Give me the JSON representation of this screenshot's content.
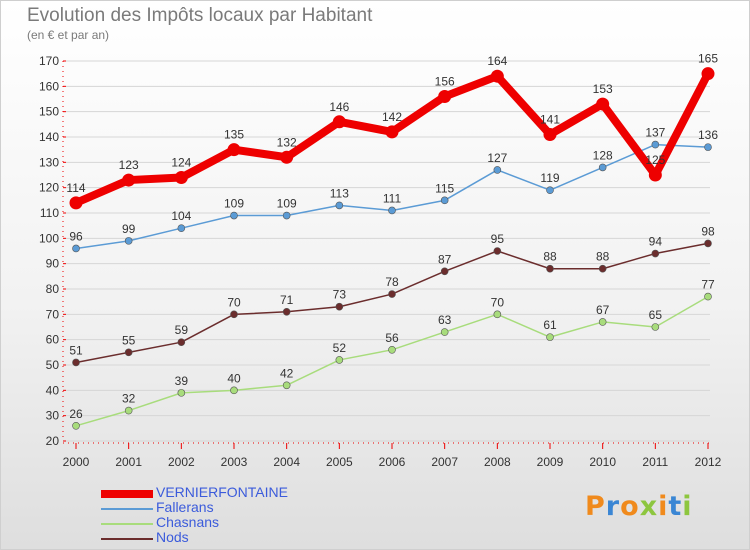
{
  "header": {
    "title": "Evolution des Impôts locaux par Habitant",
    "subtitle": "(en € et par an)"
  },
  "logo": {
    "text": "Proxiti",
    "letter_colors": [
      "#f08a1c",
      "#3a86d4",
      "#f08a1c",
      "#8dc63f",
      "#f08a1c",
      "#3a86d4",
      "#8dc63f"
    ]
  },
  "chart_data": {
    "type": "line",
    "title": "Evolution des Impôts locaux par Habitant",
    "subtitle": "(en € et par an)",
    "xlabel": "",
    "ylabel": "",
    "categories": [
      "2000",
      "2001",
      "2002",
      "2003",
      "2004",
      "2005",
      "2006",
      "2007",
      "2008",
      "2009",
      "2010",
      "2011",
      "2012"
    ],
    "ylim": [
      20,
      170
    ],
    "yticks": [
      20,
      30,
      40,
      50,
      60,
      70,
      80,
      90,
      100,
      110,
      120,
      130,
      140,
      150,
      160,
      170
    ],
    "grid": "horizontal",
    "legend_position": "bottom-left",
    "series": [
      {
        "name": "VERNIERFONTAINE",
        "color": "#ee0000",
        "values": [
          114,
          123,
          124,
          135,
          132,
          146,
          142,
          156,
          164,
          141,
          153,
          125,
          165
        ]
      },
      {
        "name": "Fallerans",
        "color": "#5b9bd5",
        "values": [
          96,
          99,
          104,
          109,
          109,
          113,
          111,
          115,
          127,
          119,
          128,
          137,
          136
        ]
      },
      {
        "name": "Chasnans",
        "color": "#a8dc7c",
        "values": [
          26,
          32,
          39,
          40,
          42,
          52,
          56,
          63,
          70,
          61,
          67,
          65,
          77
        ]
      },
      {
        "name": "Nods",
        "color": "#6b2d2d",
        "values": [
          51,
          55,
          59,
          70,
          71,
          73,
          78,
          87,
          95,
          88,
          88,
          94,
          98
        ]
      }
    ]
  }
}
